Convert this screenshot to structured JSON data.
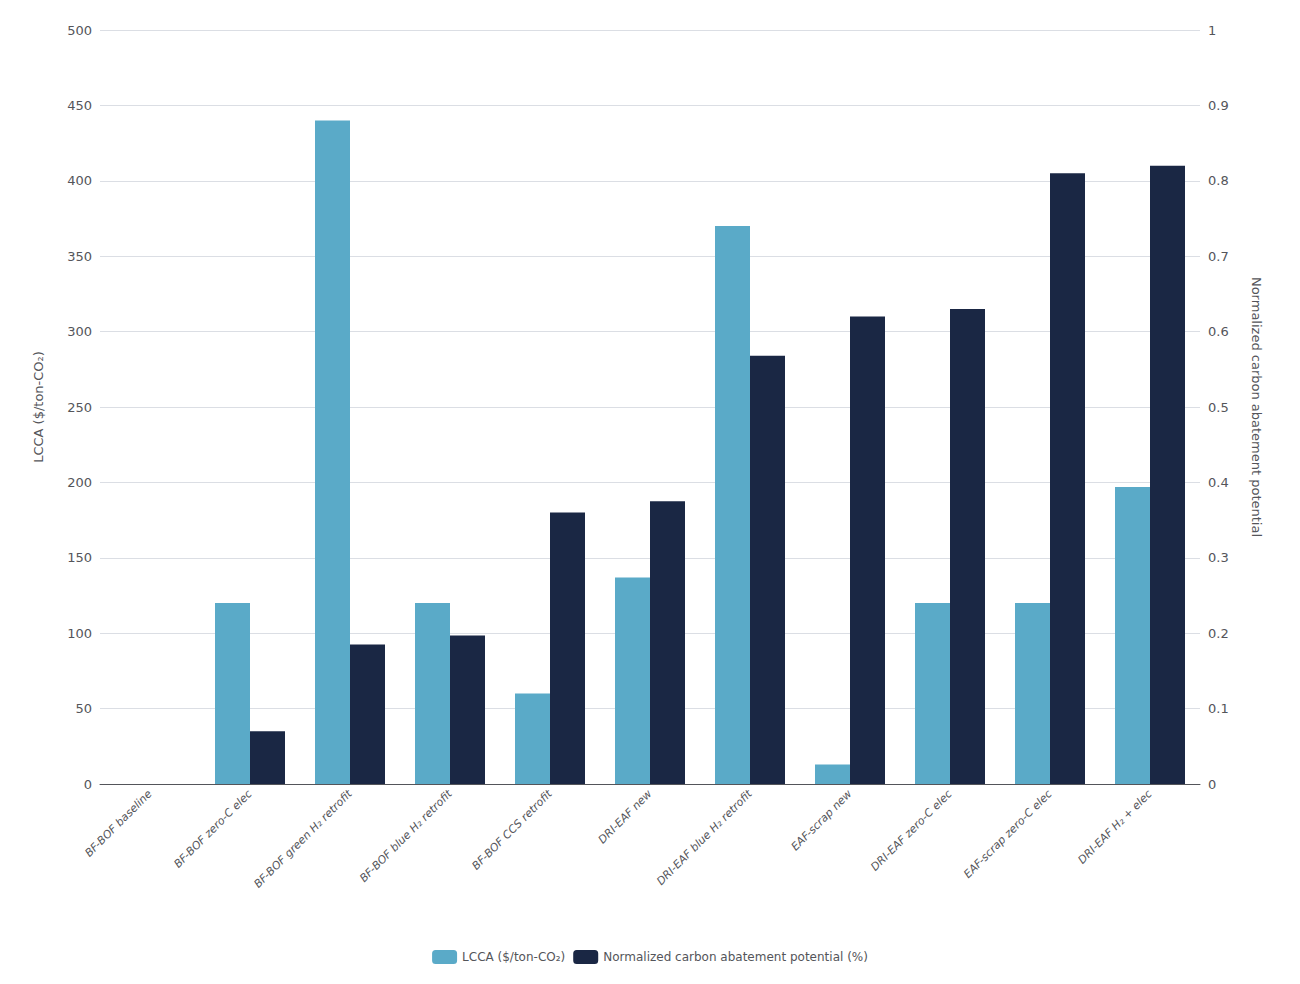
{
  "chart_data": {
    "type": "bar",
    "categories": [
      "BF-BOF baseline",
      "BF-BOF zero-C elec",
      "BF-BOF green H₂ retrofit",
      "BF-BOF blue H₂ retrofit",
      "BF-BOF CCS retrofit",
      "DRI-EAF new",
      "DRI-EAF blue H₂ retrofit",
      "EAF-scrap new",
      "DRI-EAF zero-C elec",
      "EAF-scrap zero-C elec",
      "DRI-EAF H₂ + elec"
    ],
    "series": [
      {
        "name": "LCCA ($/ton-CO₂)",
        "color": "#5aaac8",
        "values": [
          0,
          120,
          440,
          120,
          60,
          137,
          370,
          13,
          120,
          120,
          197
        ]
      },
      {
        "name": "Normalized carbon abatement potential (%)",
        "color": "#1a2744",
        "axis": "y2",
        "values": [
          0,
          0.07,
          0.185,
          0.197,
          0.36,
          0.375,
          0.568,
          0.62,
          0.63,
          0.81,
          0.82
        ]
      }
    ],
    "ylabel": "LCCA ($/ton-CO₂)",
    "y2label": "Normalized carbon abatement potential",
    "ylim": [
      0,
      500
    ],
    "yticks": [
      0,
      50,
      100,
      150,
      200,
      250,
      300,
      350,
      400,
      450,
      500
    ],
    "y2lim": [
      0,
      1
    ],
    "y2ticks": [
      0,
      0.1,
      0.2,
      0.3,
      0.4,
      0.5,
      0.6,
      0.7,
      0.8,
      0.9,
      1.0
    ],
    "grid": true,
    "legend": "bottom"
  }
}
